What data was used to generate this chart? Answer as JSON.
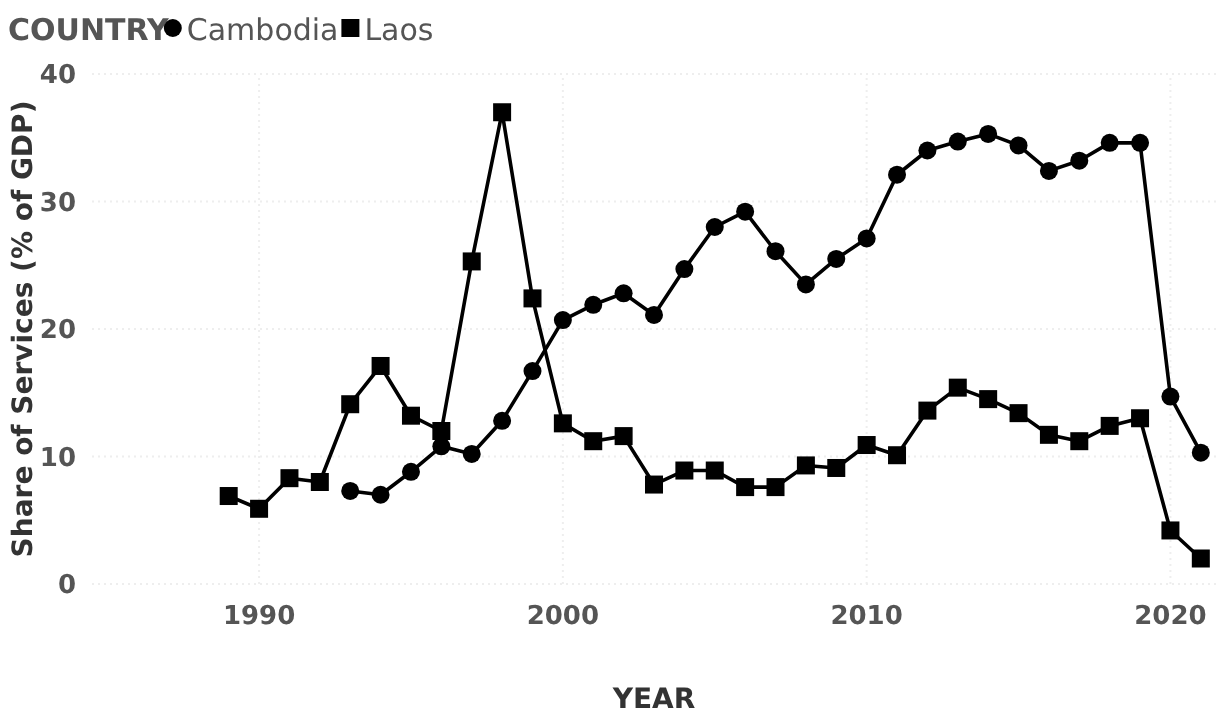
{
  "chart_data": {
    "type": "line",
    "xlabel": "YEAR",
    "ylabel": "Share of Services (% of GDP)",
    "legend_title": "COUNTRY",
    "legend": "top left",
    "grid": true,
    "line_style": "solid",
    "xlim": [
      1984.5,
      2021.5
    ],
    "xticks": [
      1990,
      2000,
      2010,
      2020
    ],
    "ylim": [
      0,
      40
    ],
    "yticks": [
      0,
      10,
      20,
      30,
      40
    ],
    "series": [
      {
        "name": "Cambodia",
        "color": "#000000",
        "marker": "circle",
        "x": [
          1993,
          1994,
          1995,
          1996,
          1997,
          1998,
          1999,
          2000,
          2001,
          2002,
          2003,
          2004,
          2005,
          2006,
          2007,
          2008,
          2009,
          2010,
          2011,
          2012,
          2013,
          2014,
          2015,
          2016,
          2017,
          2018,
          2019,
          2020,
          2021
        ],
        "values": [
          7.3,
          7.0,
          8.8,
          10.8,
          10.2,
          12.8,
          16.7,
          20.7,
          21.9,
          22.8,
          21.1,
          24.7,
          28.0,
          29.2,
          26.1,
          23.5,
          25.5,
          27.1,
          32.1,
          34.0,
          34.7,
          35.3,
          34.4,
          32.4,
          33.2,
          34.6,
          34.6,
          14.7,
          10.3
        ]
      },
      {
        "name": "Laos",
        "color": "#000000",
        "marker": "square",
        "x": [
          1989,
          1990,
          1991,
          1992,
          1993,
          1994,
          1995,
          1996,
          1997,
          1998,
          1999,
          2000,
          2001,
          2002,
          2003,
          2004,
          2005,
          2006,
          2007,
          2008,
          2009,
          2010,
          2011,
          2012,
          2013,
          2014,
          2015,
          2016,
          2017,
          2018,
          2019,
          2020,
          2021
        ],
        "values": [
          6.9,
          5.9,
          8.3,
          8.0,
          14.1,
          17.1,
          13.2,
          12.0,
          25.3,
          37.0,
          22.4,
          12.6,
          11.2,
          11.6,
          7.8,
          8.9,
          8.9,
          7.6,
          7.6,
          9.3,
          9.1,
          10.9,
          10.1,
          13.6,
          15.4,
          14.5,
          13.4,
          11.7,
          11.2,
          12.4,
          13.0,
          4.2,
          2.0
        ]
      }
    ]
  }
}
